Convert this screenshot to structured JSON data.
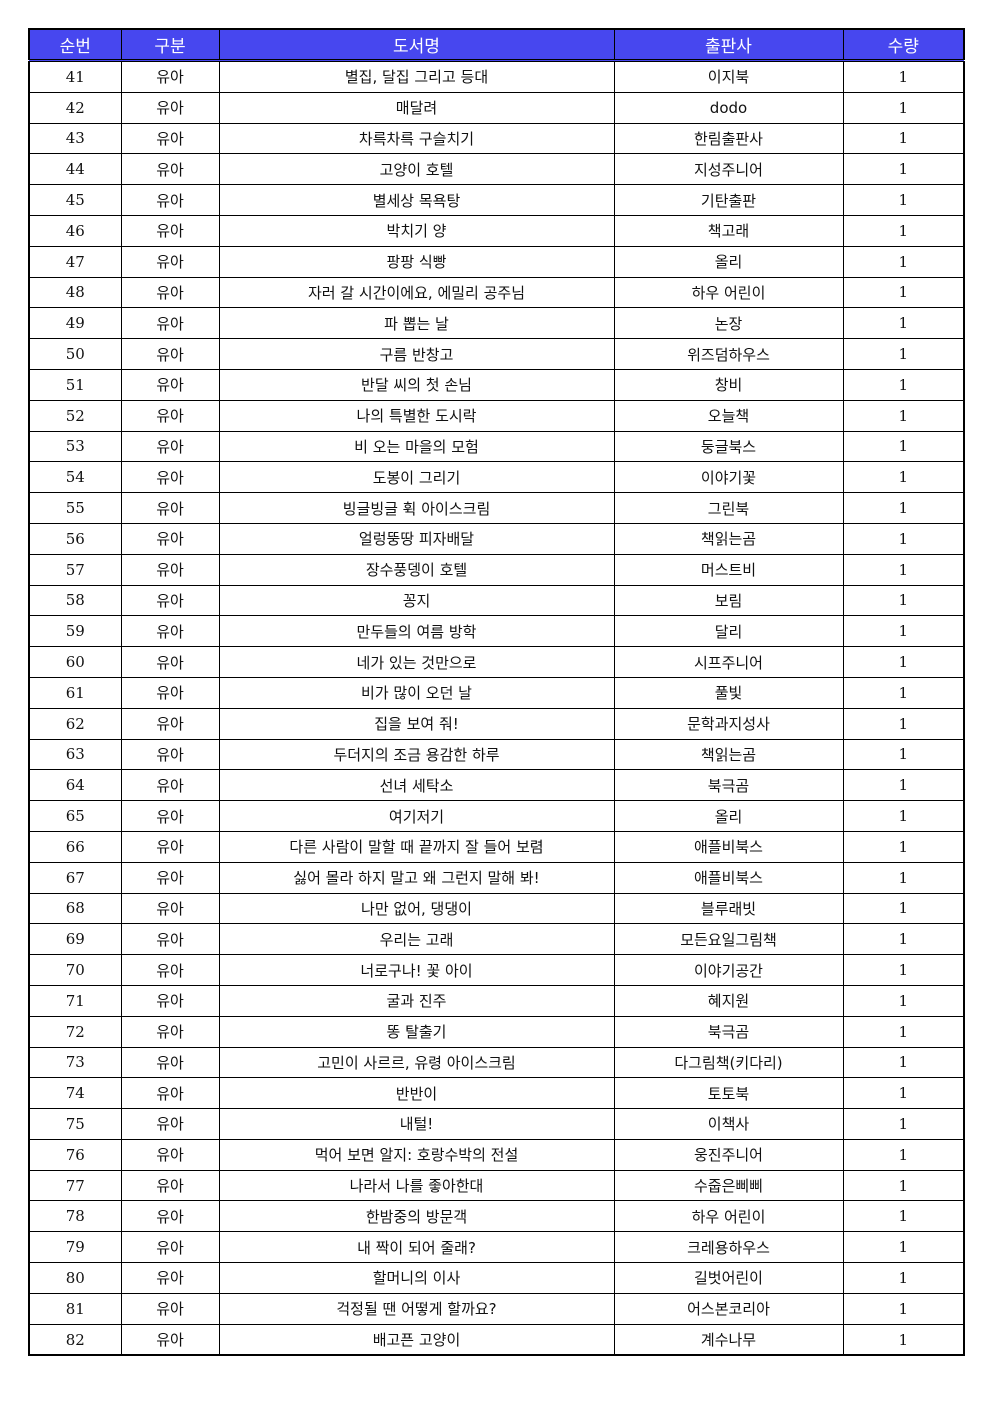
{
  "colors": {
    "header_bg": "#4747ef",
    "header_text": "#ffffff"
  },
  "headers": [
    "순번",
    "구분",
    "도서명",
    "출판사",
    "수량"
  ],
  "rows": [
    [
      "41",
      "유아",
      "별집, 달집 그리고 등대",
      "이지북",
      "1"
    ],
    [
      "42",
      "유아",
      "매달려",
      "dodo",
      "1"
    ],
    [
      "43",
      "유아",
      "차륵차륵 구슬치기",
      "한림출판사",
      "1"
    ],
    [
      "44",
      "유아",
      "고양이 호텔",
      "지성주니어",
      "1"
    ],
    [
      "45",
      "유아",
      "별세상 목욕탕",
      "기탄출판",
      "1"
    ],
    [
      "46",
      "유아",
      "박치기 양",
      "책고래",
      "1"
    ],
    [
      "47",
      "유아",
      "팡팡 식빵",
      "올리",
      "1"
    ],
    [
      "48",
      "유아",
      "자러 갈 시간이에요, 에밀리 공주님",
      "하우 어린이",
      "1"
    ],
    [
      "49",
      "유아",
      "파 뽑는 날",
      "논장",
      "1"
    ],
    [
      "50",
      "유아",
      "구름 반창고",
      "위즈덤하우스",
      "1"
    ],
    [
      "51",
      "유아",
      "반달 씨의 첫 손님",
      "창비",
      "1"
    ],
    [
      "52",
      "유아",
      "나의 특별한 도시락",
      "오늘책",
      "1"
    ],
    [
      "53",
      "유아",
      "비 오는 마을의 모험",
      "둥글북스",
      "1"
    ],
    [
      "54",
      "유아",
      "도봉이 그리기",
      "이야기꽃",
      "1"
    ],
    [
      "55",
      "유아",
      "빙글빙글 휙 아이스크림",
      "그린북",
      "1"
    ],
    [
      "56",
      "유아",
      "얼렁뚱땅 피자배달",
      "책읽는곰",
      "1"
    ],
    [
      "57",
      "유아",
      "장수풍뎅이 호텔",
      "머스트비",
      "1"
    ],
    [
      "58",
      "유아",
      "꽁지",
      "보림",
      "1"
    ],
    [
      "59",
      "유아",
      "만두들의 여름 방학",
      "달리",
      "1"
    ],
    [
      "60",
      "유아",
      "네가 있는 것만으로",
      "시프주니어",
      "1"
    ],
    [
      "61",
      "유아",
      "비가 많이 오던 날",
      "풀빛",
      "1"
    ],
    [
      "62",
      "유아",
      "집을 보여 줘!",
      "문학과지성사",
      "1"
    ],
    [
      "63",
      "유아",
      "두더지의 조금 용감한 하루",
      "책읽는곰",
      "1"
    ],
    [
      "64",
      "유아",
      "선녀 세탁소",
      "북극곰",
      "1"
    ],
    [
      "65",
      "유아",
      "여기저기",
      "올리",
      "1"
    ],
    [
      "66",
      "유아",
      "다른 사람이 말할 때 끝까지 잘 들어 보렴",
      "애플비북스",
      "1"
    ],
    [
      "67",
      "유아",
      "싫어 몰라 하지 말고 왜 그런지 말해 봐!",
      "애플비북스",
      "1"
    ],
    [
      "68",
      "유아",
      "나만 없어, 댕댕이",
      "블루래빗",
      "1"
    ],
    [
      "69",
      "유아",
      "우리는 고래",
      "모든요일그림책",
      "1"
    ],
    [
      "70",
      "유아",
      "너로구나! 꽃 아이",
      "이야기공간",
      "1"
    ],
    [
      "71",
      "유아",
      "굴과 진주",
      "혜지원",
      "1"
    ],
    [
      "72",
      "유아",
      "똥 탈출기",
      "북극곰",
      "1"
    ],
    [
      "73",
      "유아",
      "고민이 사르르, 유령 아이스크림",
      "다그림책(키다리)",
      "1"
    ],
    [
      "74",
      "유아",
      "반반이",
      "토토북",
      "1"
    ],
    [
      "75",
      "유아",
      "내털!",
      "이책사",
      "1"
    ],
    [
      "76",
      "유아",
      "먹어 보면 알지: 호랑수박의 전설",
      "웅진주니어",
      "1"
    ],
    [
      "77",
      "유아",
      "나라서 나를 좋아한대",
      "수줍은삐삐",
      "1"
    ],
    [
      "78",
      "유아",
      "한밤중의 방문객",
      "하우 어린이",
      "1"
    ],
    [
      "79",
      "유아",
      "내 짝이 되어 줄래?",
      "크레용하우스",
      "1"
    ],
    [
      "80",
      "유아",
      "할머니의 이사",
      "길벗어린이",
      "1"
    ],
    [
      "81",
      "유아",
      "걱정될 땐 어떻게 할까요?",
      "어스본코리아",
      "1"
    ],
    [
      "82",
      "유아",
      "배고픈 고양이",
      "계수나무",
      "1"
    ]
  ]
}
